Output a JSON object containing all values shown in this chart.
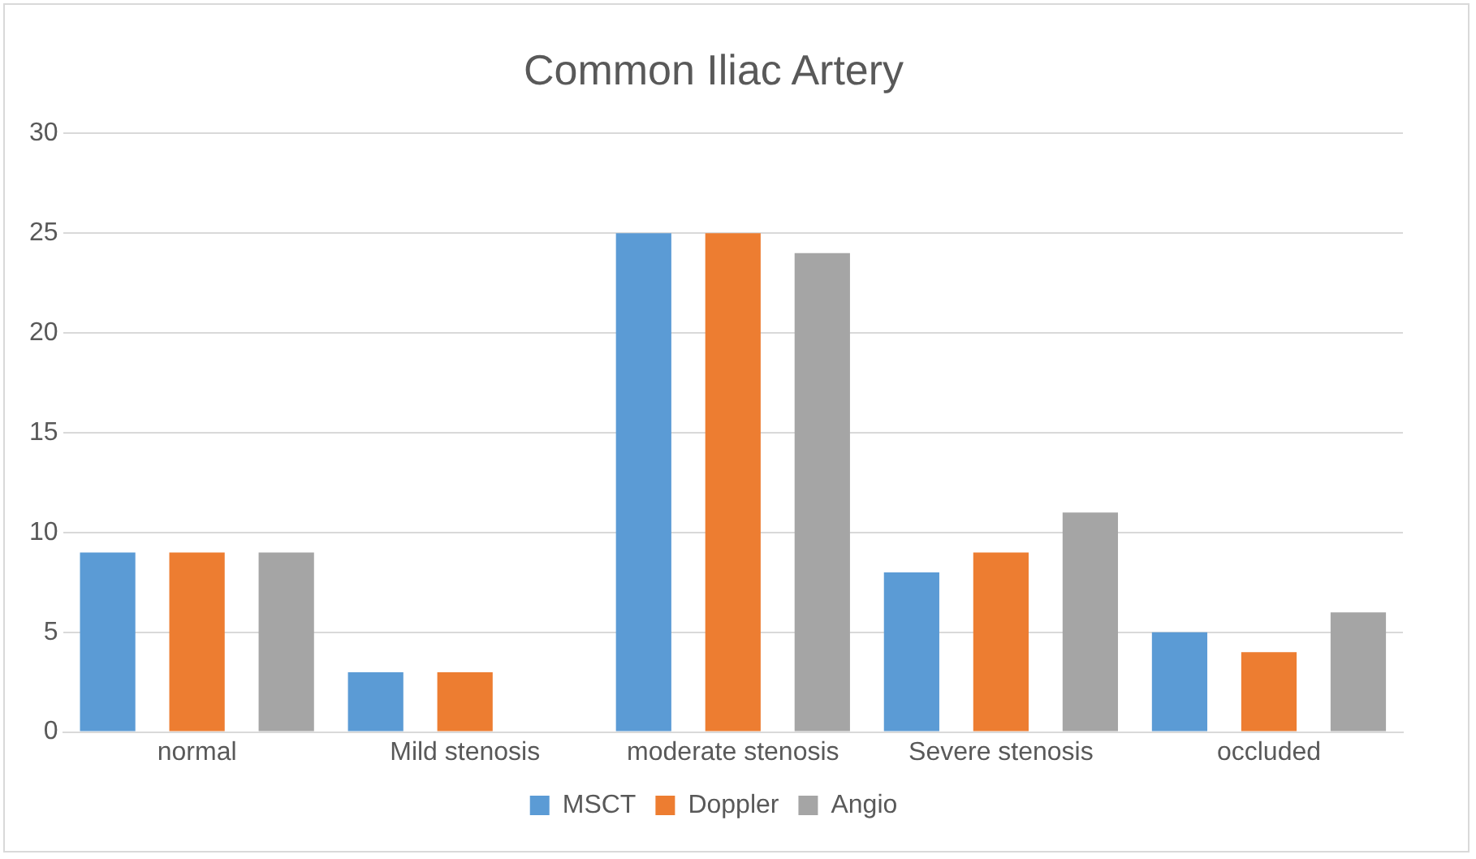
{
  "chart_data": {
    "type": "bar",
    "title": "Common Iliac Artery",
    "categories": [
      "normal",
      "Mild stenosis",
      "moderate stenosis",
      "Severe stenosis",
      "occluded"
    ],
    "series": [
      {
        "name": "MSCT",
        "color": "#5b9bd5",
        "values": [
          9,
          3,
          25,
          8,
          5
        ]
      },
      {
        "name": "Doppler",
        "color": "#ed7d31",
        "values": [
          9,
          3,
          25,
          9,
          4
        ]
      },
      {
        "name": "Angio",
        "color": "#a5a5a5",
        "values": [
          9,
          0,
          24,
          11,
          6
        ]
      }
    ],
    "ylim": [
      0,
      30
    ],
    "yticks": [
      0,
      5,
      10,
      15,
      20,
      25,
      30
    ],
    "grid": "y",
    "legend": "bottom"
  }
}
